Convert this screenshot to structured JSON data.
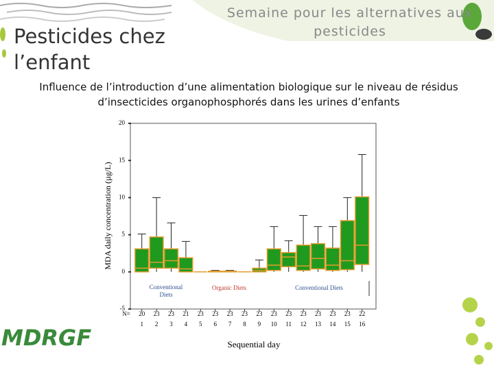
{
  "slide": {
    "title": "Pesticides chez l’enfant",
    "banner": "Semaine pour les alternatives aux pesticides",
    "subtitle": "Influence de l’introduction d’une alimentation biologique sur le niveau de résidus d’insecticides organophosphorés dans les urines d’enfants",
    "logo": "MDRGF"
  },
  "chart_data": {
    "type": "box",
    "y_label": "MDA daily concentration (µg/L)",
    "x_label": "Sequential day",
    "categories": [
      "1",
      "2",
      "3",
      "4",
      "5",
      "6",
      "7",
      "8",
      "9",
      "10",
      "11",
      "12",
      "13",
      "14",
      "15",
      "16"
    ],
    "n_label": "N=",
    "n": [
      20,
      23,
      23,
      21,
      23,
      23,
      23,
      23,
      23,
      23,
      23,
      23,
      23,
      23,
      23,
      22
    ],
    "min": [
      0,
      0,
      0,
      0,
      0,
      0,
      0,
      0,
      0,
      0,
      0,
      0,
      0,
      0,
      0,
      0
    ],
    "q1": [
      0,
      0.5,
      0.5,
      0,
      0,
      0,
      0,
      0,
      0,
      0.2,
      0.7,
      0.2,
      0.4,
      0.2,
      0.3,
      1.0
    ],
    "median": [
      0.5,
      1.3,
      1.5,
      0.4,
      0,
      0,
      0,
      0,
      0.2,
      0.9,
      2.0,
      0.8,
      1.8,
      0.9,
      1.5,
      3.6
    ],
    "q3": [
      3.1,
      4.7,
      3.1,
      1.9,
      0,
      0.1,
      0.1,
      0,
      0.5,
      3.1,
      2.6,
      3.6,
      3.8,
      3.2,
      6.9,
      10.1
    ],
    "max": [
      5.1,
      10.0,
      6.6,
      4.1,
      0,
      0.2,
      0.2,
      0,
      1.6,
      6.1,
      4.2,
      7.6,
      6.1,
      6.1,
      10.0,
      15.8
    ],
    "color": "#1f9a1f",
    "edge_color": "#e39b2c",
    "ylim": [
      -5,
      20
    ],
    "yticks": [
      -5,
      0,
      5,
      10,
      15,
      20
    ],
    "annotations": [
      {
        "text": "Conventional",
        "color": "#2f4f8f"
      },
      {
        "text": "Diets",
        "color": "#2f4f8f"
      },
      {
        "text": "Organic Diets",
        "color": "#c0392b"
      },
      {
        "text": "Conventional Diets",
        "color": "#2f4f8f"
      }
    ]
  }
}
